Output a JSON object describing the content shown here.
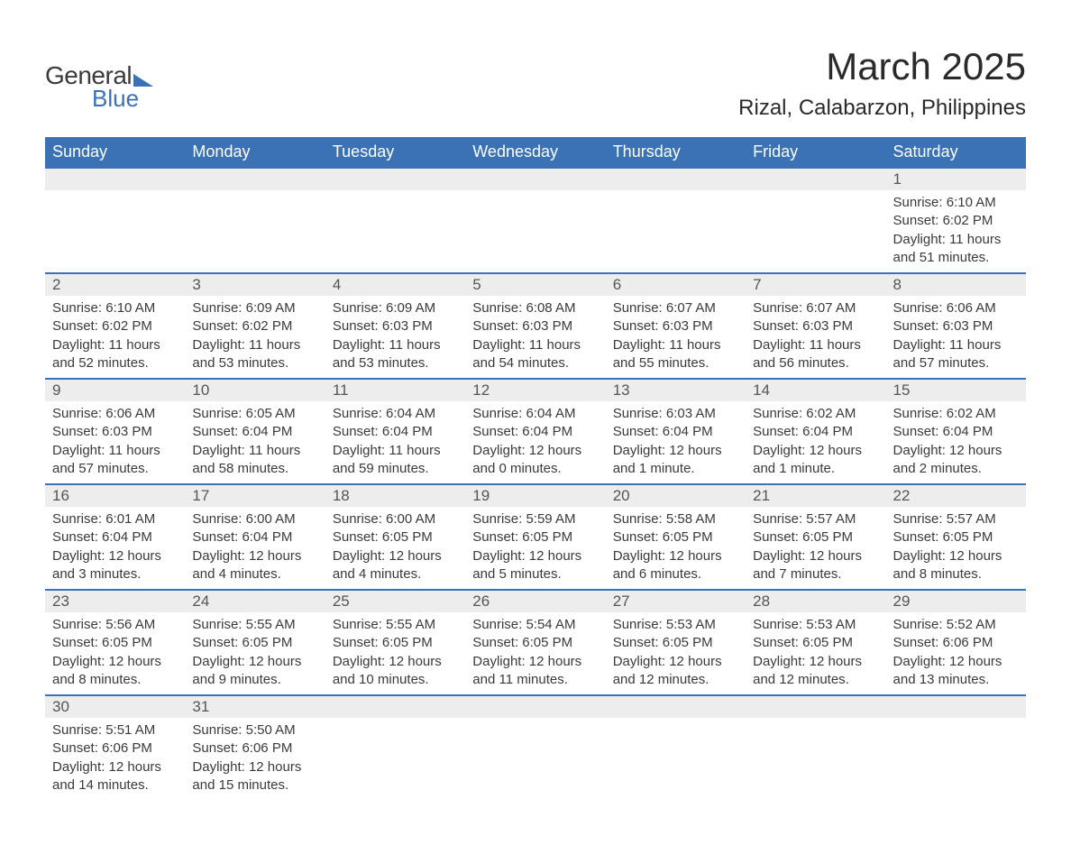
{
  "logo": {
    "text_general": "General",
    "text_blue": "Blue"
  },
  "title": "March 2025",
  "location": "Rizal, Calabarzon, Philippines",
  "day_headers": [
    "Sunday",
    "Monday",
    "Tuesday",
    "Wednesday",
    "Thursday",
    "Friday",
    "Saturday"
  ],
  "colors": {
    "header_bg": "#3a72b5",
    "header_fg": "#ffffff",
    "daynum_bg": "#ededed",
    "daynum_fg": "#555555",
    "body_fg": "#3a3a3a",
    "row_border": "#3a72b5",
    "page_bg": "#ffffff",
    "title_fg": "#2a2a2a"
  },
  "typography": {
    "month_title_size_pt": 32,
    "location_size_pt": 18,
    "header_size_pt": 14,
    "daynum_size_pt": 13,
    "body_size_pt": 11
  },
  "weeks": [
    [
      {
        "num": "",
        "sunrise": "",
        "sunset": "",
        "daylight": ""
      },
      {
        "num": "",
        "sunrise": "",
        "sunset": "",
        "daylight": ""
      },
      {
        "num": "",
        "sunrise": "",
        "sunset": "",
        "daylight": ""
      },
      {
        "num": "",
        "sunrise": "",
        "sunset": "",
        "daylight": ""
      },
      {
        "num": "",
        "sunrise": "",
        "sunset": "",
        "daylight": ""
      },
      {
        "num": "",
        "sunrise": "",
        "sunset": "",
        "daylight": ""
      },
      {
        "num": "1",
        "sunrise": "Sunrise: 6:10 AM",
        "sunset": "Sunset: 6:02 PM",
        "daylight": "Daylight: 11 hours and 51 minutes."
      }
    ],
    [
      {
        "num": "2",
        "sunrise": "Sunrise: 6:10 AM",
        "sunset": "Sunset: 6:02 PM",
        "daylight": "Daylight: 11 hours and 52 minutes."
      },
      {
        "num": "3",
        "sunrise": "Sunrise: 6:09 AM",
        "sunset": "Sunset: 6:02 PM",
        "daylight": "Daylight: 11 hours and 53 minutes."
      },
      {
        "num": "4",
        "sunrise": "Sunrise: 6:09 AM",
        "sunset": "Sunset: 6:03 PM",
        "daylight": "Daylight: 11 hours and 53 minutes."
      },
      {
        "num": "5",
        "sunrise": "Sunrise: 6:08 AM",
        "sunset": "Sunset: 6:03 PM",
        "daylight": "Daylight: 11 hours and 54 minutes."
      },
      {
        "num": "6",
        "sunrise": "Sunrise: 6:07 AM",
        "sunset": "Sunset: 6:03 PM",
        "daylight": "Daylight: 11 hours and 55 minutes."
      },
      {
        "num": "7",
        "sunrise": "Sunrise: 6:07 AM",
        "sunset": "Sunset: 6:03 PM",
        "daylight": "Daylight: 11 hours and 56 minutes."
      },
      {
        "num": "8",
        "sunrise": "Sunrise: 6:06 AM",
        "sunset": "Sunset: 6:03 PM",
        "daylight": "Daylight: 11 hours and 57 minutes."
      }
    ],
    [
      {
        "num": "9",
        "sunrise": "Sunrise: 6:06 AM",
        "sunset": "Sunset: 6:03 PM",
        "daylight": "Daylight: 11 hours and 57 minutes."
      },
      {
        "num": "10",
        "sunrise": "Sunrise: 6:05 AM",
        "sunset": "Sunset: 6:04 PM",
        "daylight": "Daylight: 11 hours and 58 minutes."
      },
      {
        "num": "11",
        "sunrise": "Sunrise: 6:04 AM",
        "sunset": "Sunset: 6:04 PM",
        "daylight": "Daylight: 11 hours and 59 minutes."
      },
      {
        "num": "12",
        "sunrise": "Sunrise: 6:04 AM",
        "sunset": "Sunset: 6:04 PM",
        "daylight": "Daylight: 12 hours and 0 minutes."
      },
      {
        "num": "13",
        "sunrise": "Sunrise: 6:03 AM",
        "sunset": "Sunset: 6:04 PM",
        "daylight": "Daylight: 12 hours and 1 minute."
      },
      {
        "num": "14",
        "sunrise": "Sunrise: 6:02 AM",
        "sunset": "Sunset: 6:04 PM",
        "daylight": "Daylight: 12 hours and 1 minute."
      },
      {
        "num": "15",
        "sunrise": "Sunrise: 6:02 AM",
        "sunset": "Sunset: 6:04 PM",
        "daylight": "Daylight: 12 hours and 2 minutes."
      }
    ],
    [
      {
        "num": "16",
        "sunrise": "Sunrise: 6:01 AM",
        "sunset": "Sunset: 6:04 PM",
        "daylight": "Daylight: 12 hours and 3 minutes."
      },
      {
        "num": "17",
        "sunrise": "Sunrise: 6:00 AM",
        "sunset": "Sunset: 6:04 PM",
        "daylight": "Daylight: 12 hours and 4 minutes."
      },
      {
        "num": "18",
        "sunrise": "Sunrise: 6:00 AM",
        "sunset": "Sunset: 6:05 PM",
        "daylight": "Daylight: 12 hours and 4 minutes."
      },
      {
        "num": "19",
        "sunrise": "Sunrise: 5:59 AM",
        "sunset": "Sunset: 6:05 PM",
        "daylight": "Daylight: 12 hours and 5 minutes."
      },
      {
        "num": "20",
        "sunrise": "Sunrise: 5:58 AM",
        "sunset": "Sunset: 6:05 PM",
        "daylight": "Daylight: 12 hours and 6 minutes."
      },
      {
        "num": "21",
        "sunrise": "Sunrise: 5:57 AM",
        "sunset": "Sunset: 6:05 PM",
        "daylight": "Daylight: 12 hours and 7 minutes."
      },
      {
        "num": "22",
        "sunrise": "Sunrise: 5:57 AM",
        "sunset": "Sunset: 6:05 PM",
        "daylight": "Daylight: 12 hours and 8 minutes."
      }
    ],
    [
      {
        "num": "23",
        "sunrise": "Sunrise: 5:56 AM",
        "sunset": "Sunset: 6:05 PM",
        "daylight": "Daylight: 12 hours and 8 minutes."
      },
      {
        "num": "24",
        "sunrise": "Sunrise: 5:55 AM",
        "sunset": "Sunset: 6:05 PM",
        "daylight": "Daylight: 12 hours and 9 minutes."
      },
      {
        "num": "25",
        "sunrise": "Sunrise: 5:55 AM",
        "sunset": "Sunset: 6:05 PM",
        "daylight": "Daylight: 12 hours and 10 minutes."
      },
      {
        "num": "26",
        "sunrise": "Sunrise: 5:54 AM",
        "sunset": "Sunset: 6:05 PM",
        "daylight": "Daylight: 12 hours and 11 minutes."
      },
      {
        "num": "27",
        "sunrise": "Sunrise: 5:53 AM",
        "sunset": "Sunset: 6:05 PM",
        "daylight": "Daylight: 12 hours and 12 minutes."
      },
      {
        "num": "28",
        "sunrise": "Sunrise: 5:53 AM",
        "sunset": "Sunset: 6:05 PM",
        "daylight": "Daylight: 12 hours and 12 minutes."
      },
      {
        "num": "29",
        "sunrise": "Sunrise: 5:52 AM",
        "sunset": "Sunset: 6:06 PM",
        "daylight": "Daylight: 12 hours and 13 minutes."
      }
    ],
    [
      {
        "num": "30",
        "sunrise": "Sunrise: 5:51 AM",
        "sunset": "Sunset: 6:06 PM",
        "daylight": "Daylight: 12 hours and 14 minutes."
      },
      {
        "num": "31",
        "sunrise": "Sunrise: 5:50 AM",
        "sunset": "Sunset: 6:06 PM",
        "daylight": "Daylight: 12 hours and 15 minutes."
      },
      {
        "num": "",
        "sunrise": "",
        "sunset": "",
        "daylight": ""
      },
      {
        "num": "",
        "sunrise": "",
        "sunset": "",
        "daylight": ""
      },
      {
        "num": "",
        "sunrise": "",
        "sunset": "",
        "daylight": ""
      },
      {
        "num": "",
        "sunrise": "",
        "sunset": "",
        "daylight": ""
      },
      {
        "num": "",
        "sunrise": "",
        "sunset": "",
        "daylight": ""
      }
    ]
  ]
}
